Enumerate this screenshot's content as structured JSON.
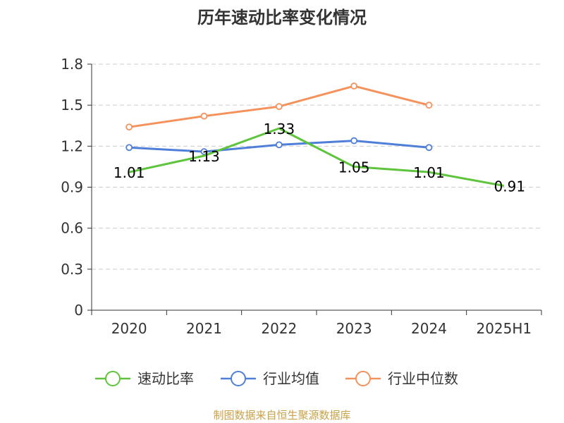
{
  "chart_data": {
    "type": "line",
    "title": "历年速动比率变化情况",
    "categories": [
      "2020",
      "2021",
      "2022",
      "2023",
      "2024",
      "2025H1"
    ],
    "ylim": [
      0,
      1.8
    ],
    "yticks": [
      "0",
      "0.3",
      "0.6",
      "0.9",
      "1.2",
      "1.5",
      "1.8"
    ],
    "grid": true,
    "legend_position": "bottom",
    "series": [
      {
        "name": "速动比率",
        "color": "#5ec43c",
        "values": [
          1.01,
          1.13,
          1.33,
          1.05,
          1.01,
          0.91
        ],
        "labels": [
          "1.01",
          "1.13",
          "1.33",
          "1.05",
          "1.01",
          "0.91"
        ]
      },
      {
        "name": "行业均值",
        "color": "#4f7fd8",
        "values": [
          1.19,
          1.16,
          1.21,
          1.24,
          1.19,
          null
        ]
      },
      {
        "name": "行业中位数",
        "color": "#f5925c",
        "values": [
          1.34,
          1.42,
          1.49,
          1.64,
          1.5,
          null
        ]
      }
    ]
  },
  "source": "制图数据来自恒生聚源数据库"
}
